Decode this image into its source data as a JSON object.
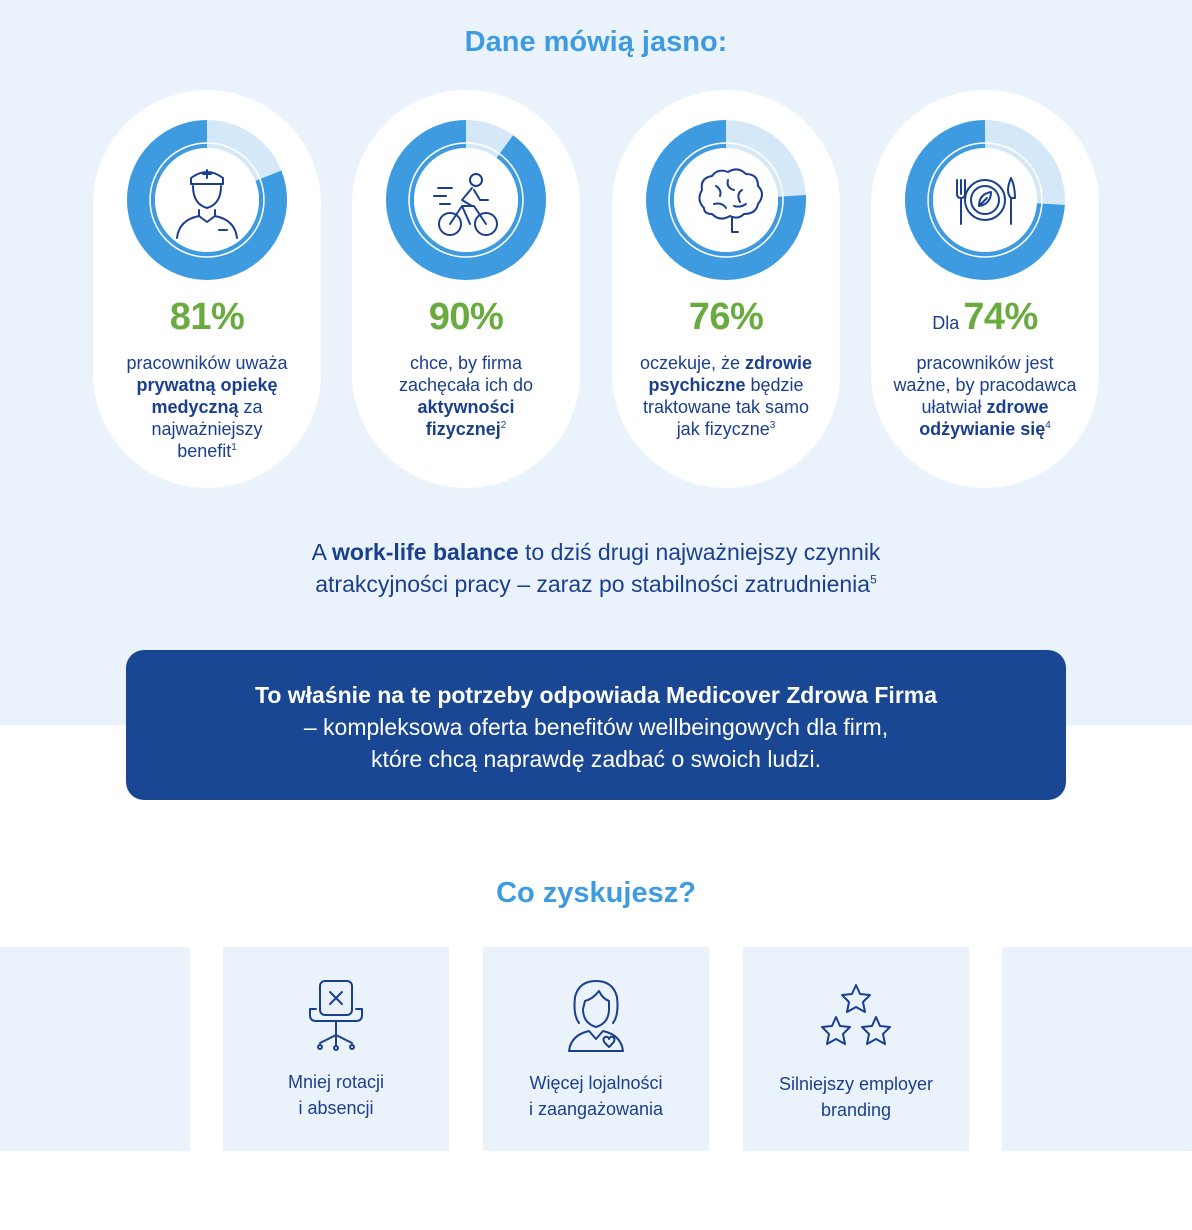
{
  "header": {
    "title": "Dane mówią jasno:"
  },
  "colors": {
    "accent_blue": "#3f9be0",
    "ring_light": "#d5e8f8",
    "stat_green": "#6aab3f",
    "navy": "#1b3f8f",
    "banner_bg": "#1a4793",
    "band_bg": "#eaf3fc"
  },
  "stats": [
    {
      "icon": "doctor-icon",
      "prefix": "",
      "value": "81%",
      "fraction": 0.81,
      "desc": {
        "l1": "pracowników uważa",
        "l2b": "prywatną opiekę",
        "l3b": "medyczną",
        "l3": " za",
        "l4": "najważniejszy",
        "l5": "benefit",
        "sup": "1"
      }
    },
    {
      "icon": "cyclist-icon",
      "prefix": "",
      "value": "90%",
      "fraction": 0.9,
      "desc": {
        "l1": "chce, by firma",
        "l2": "zachęcała ich do",
        "l3b": "aktywności",
        "l4b": "fizycznej",
        "sup": "2"
      }
    },
    {
      "icon": "brain-icon",
      "prefix": "",
      "value": "76%",
      "fraction": 0.76,
      "desc": {
        "l1": "oczekuje, że ",
        "l1b": "zdrowie",
        "l2b": "psychiczne",
        "l2": " będzie",
        "l3": "traktowane tak samo",
        "l4": "jak fizyczne",
        "sup": "3"
      }
    },
    {
      "icon": "plate-cutlery-icon",
      "prefix": "Dla",
      "value": "74%",
      "fraction": 0.74,
      "desc": {
        "l1": "pracowników jest",
        "l2": "ważne, by pracodawca",
        "l3": "ułatwiał ",
        "l3b": "zdrowe",
        "l4b": "odżywianie się",
        "sup": "4"
      }
    }
  ],
  "wlb": {
    "a": "A ",
    "bold": "work-life balance",
    "rest1": " to dziś drugi najważniejszy czynnik",
    "line2": "atrakcyjności pracy – zaraz po stabilności zatrudnienia",
    "sup": "5"
  },
  "banner": {
    "line1": "To właśnie na te potrzeby odpowiada Medicover Zdrowa Firma",
    "line2": "– kompleksowa oferta benefitów wellbeingowych dla firm,",
    "line3": "które chcą naprawdę zadbać o swoich ludzi."
  },
  "benefits_title": "Co zyskujesz?",
  "benefits": [
    {
      "icon": "office-chair-icon",
      "l1": "Mniej rotacji",
      "l2": "i absencji"
    },
    {
      "icon": "employee-heart-icon",
      "l1": "Więcej lojalności",
      "l2": "i zaangażowania"
    },
    {
      "icon": "stars-icon",
      "l1": "Silniejszy employer",
      "l2": "branding"
    }
  ]
}
